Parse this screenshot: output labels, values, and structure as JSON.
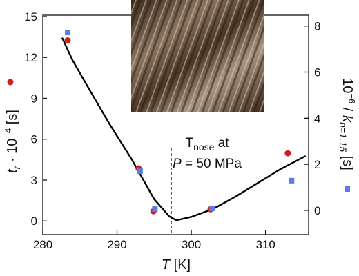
{
  "chart_data": {
    "type": "scatter",
    "xlim": [
      280,
      315.8
    ],
    "xticks": [
      280,
      290,
      300,
      310
    ],
    "ylim": [
      -1,
      15.1
    ],
    "yticks": [
      0,
      3,
      6,
      9,
      12,
      15
    ],
    "y2lim": [
      -1.05,
      8.47
    ],
    "y2ticks": [
      0,
      2,
      4,
      6,
      8
    ],
    "x_label": [
      "T",
      " [K]"
    ],
    "y_label": [
      "t",
      "r",
      " · 10",
      "−4",
      " [s]"
    ],
    "y2_label": [
      "10",
      "−6",
      " / ",
      "k",
      "n=1.15",
      " [s]"
    ],
    "series": [
      {
        "color": "#cc1f1f",
        "marker": "circle",
        "x": [
          283.35,
          292.9,
          294.9,
          302.6,
          313.0
        ],
        "values": [
          13.25,
          3.86,
          0.71,
          0.86,
          4.97
        ]
      },
      {
        "color": "#5b7de8",
        "marker": "square",
        "axis": "y2",
        "x": [
          283.35,
          293.1,
          295.1,
          302.8,
          313.5
        ],
        "values": [
          7.72,
          1.7,
          0.06,
          0.09,
          1.29
        ]
      },
      {
        "color": "#000000",
        "marker": "line",
        "x": [
          282.6,
          284,
          286,
          289,
          292,
          295,
          297,
          298,
          300,
          303,
          306,
          309,
          312,
          315.4
        ],
        "values": [
          13.45,
          11.8,
          9.9,
          7.1,
          4.5,
          1.6,
          0.35,
          0.05,
          0.3,
          0.9,
          1.8,
          2.8,
          3.8,
          4.77
        ]
      }
    ],
    "annotation": {
      "x": 297.3,
      "t": "T",
      "sub": "nose",
      "at": " at",
      "p": "P",
      "rest": " = 50 MPa"
    }
  }
}
